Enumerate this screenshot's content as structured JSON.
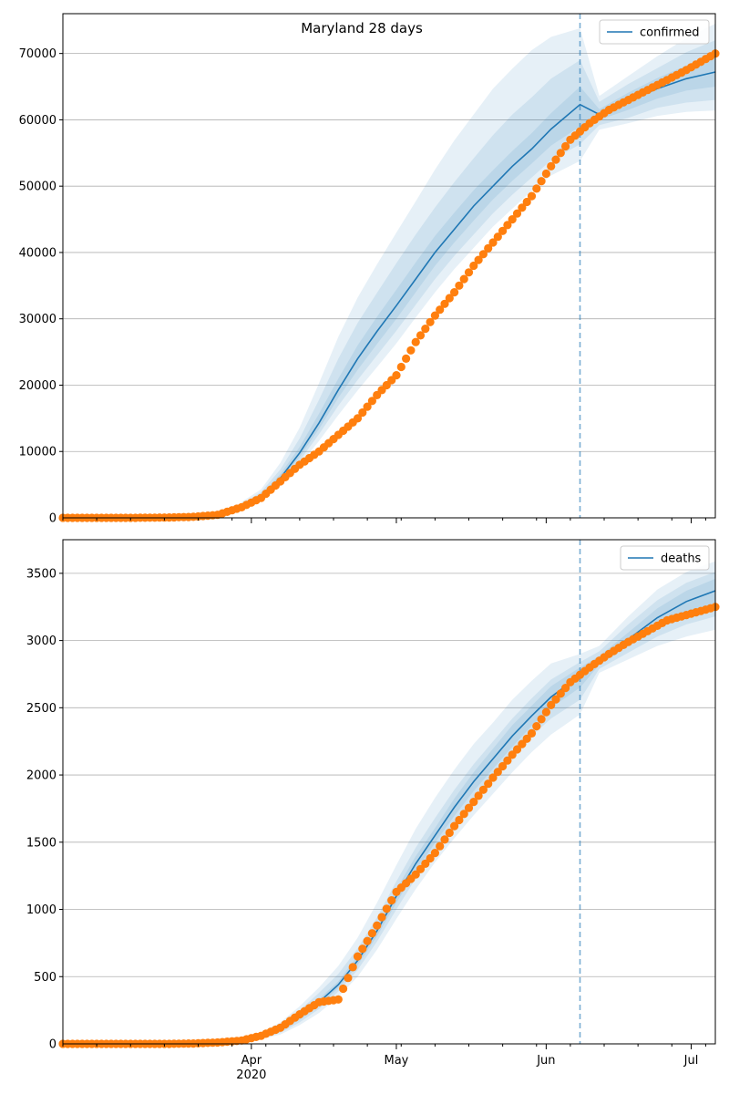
{
  "title": "Maryland 28 days",
  "colors": {
    "model": "#1f77b4",
    "observed": "#ff7f0e",
    "band": "#1f77b4",
    "grid": "#b0b0b0"
  },
  "x_axis": {
    "domain": [
      "2020-02-22",
      "2020-07-06"
    ],
    "ticks": [
      {
        "date": "2020-04-01",
        "label": "Apr",
        "sublabel": "2020"
      },
      {
        "date": "2020-05-01",
        "label": "May",
        "sublabel": ""
      },
      {
        "date": "2020-06-01",
        "label": "Jun",
        "sublabel": ""
      },
      {
        "date": "2020-07-01",
        "label": "Jul",
        "sublabel": ""
      }
    ],
    "forecast_start": "2020-06-08"
  },
  "chart_data": [
    {
      "type": "line",
      "name": "confirmed",
      "legend": "confirmed",
      "legend_position": "top-right",
      "grid": true,
      "ylim": [
        0,
        76000
      ],
      "yticks": [
        0,
        10000,
        20000,
        30000,
        40000,
        50000,
        60000,
        70000
      ],
      "model_line": {
        "x": [
          "2020-03-30",
          "2020-04-03",
          "2020-04-07",
          "2020-04-11",
          "2020-04-15",
          "2020-04-19",
          "2020-04-23",
          "2020-04-27",
          "2020-05-01",
          "2020-05-05",
          "2020-05-09",
          "2020-05-13",
          "2020-05-17",
          "2020-05-21",
          "2020-05-25",
          "2020-05-29",
          "2020-06-02",
          "2020-06-08",
          "2020-06-12",
          "2020-06-18",
          "2020-06-24",
          "2020-06-30",
          "2020-07-06"
        ],
        "y": [
          1600,
          3200,
          6000,
          9800,
          14300,
          19300,
          24000,
          28100,
          32000,
          36000,
          40000,
          43500,
          47000,
          50000,
          53000,
          55600,
          58600,
          62300,
          60800,
          62800,
          64700,
          66200,
          67200
        ],
        "bands": [
          {
            "lo": [
              1300,
              2600,
              4800,
              8000,
              11600,
              15500,
              19200,
              22700,
              26300,
              30200,
              34000,
              37500,
              40700,
              43900,
              46600,
              49300,
              51600,
              53800,
              58500,
              59500,
              60600,
              61200,
              61400
            ],
            "hi": [
              2400,
              4300,
              8300,
              13600,
              20300,
              27300,
              33200,
              38200,
              43000,
              47700,
              52500,
              56900,
              60800,
              64700,
              67700,
              70500,
              72500,
              73800,
              63600,
              66600,
              69600,
              72300,
              74500
            ]
          },
          {
            "lo": [
              1400,
              2800,
              5200,
              8600,
              12600,
              16900,
              20800,
              24500,
              28200,
              32100,
              36000,
              39500,
              42700,
              45900,
              48700,
              51300,
              53900,
              56300,
              59200,
              60300,
              61800,
              62600,
              63000
            ],
            "hi": [
              2100,
              3900,
              7300,
              12000,
              17800,
              24000,
              29400,
              33900,
              38400,
              42700,
              46800,
              50600,
              54200,
              57700,
              60800,
              63400,
              66200,
              69000,
              62700,
              65400,
              67800,
              70200,
              72000
            ]
          },
          {
            "lo": [
              1500,
              3000,
              5600,
              9200,
              13400,
              18100,
              22300,
              26200,
              30000,
              34000,
              38000,
              41500,
              44800,
              48000,
              50800,
              53400,
              56100,
              59000,
              60000,
              61500,
              63200,
              64400,
              65000
            ],
            "hi": [
              1800,
              3500,
              6600,
              10700,
              15700,
              21000,
              26000,
              30300,
              34400,
              38500,
              42500,
              46000,
              49400,
              52400,
              55300,
              58000,
              61000,
              65000,
              61600,
              64100,
              66300,
              68200,
              69600
            ]
          }
        ]
      },
      "observed": {
        "x": [
          "2020-02-22",
          "2020-03-01",
          "2020-03-08",
          "2020-03-15",
          "2020-03-20",
          "2020-03-25",
          "2020-03-30",
          "2020-04-03",
          "2020-04-07",
          "2020-04-11",
          "2020-04-15",
          "2020-04-19",
          "2020-04-23",
          "2020-04-27",
          "2020-05-01",
          "2020-05-05",
          "2020-05-09",
          "2020-05-13",
          "2020-05-17",
          "2020-05-21",
          "2020-05-25",
          "2020-05-29",
          "2020-06-02",
          "2020-06-06",
          "2020-06-10",
          "2020-06-14",
          "2020-06-18",
          "2020-06-22",
          "2020-06-26",
          "2020-06-30",
          "2020-07-06"
        ],
        "y": [
          0,
          0,
          0,
          50,
          150,
          450,
          1600,
          3000,
          5500,
          8000,
          10000,
          12500,
          15000,
          18500,
          21500,
          26500,
          30500,
          34000,
          38000,
          41500,
          45000,
          48500,
          53000,
          57000,
          59500,
          61500,
          63000,
          64500,
          66000,
          67500,
          70000
        ]
      }
    },
    {
      "type": "line",
      "name": "deaths",
      "legend": "deaths",
      "legend_position": "top-right",
      "grid": true,
      "ylim": [
        0,
        3750
      ],
      "yticks": [
        0,
        500,
        1000,
        1500,
        2000,
        2500,
        3000,
        3500
      ],
      "model_line": {
        "x": [
          "2020-03-30",
          "2020-04-03",
          "2020-04-07",
          "2020-04-11",
          "2020-04-15",
          "2020-04-19",
          "2020-04-23",
          "2020-04-27",
          "2020-05-01",
          "2020-05-05",
          "2020-05-09",
          "2020-05-13",
          "2020-05-17",
          "2020-05-21",
          "2020-05-25",
          "2020-05-29",
          "2020-06-02",
          "2020-06-08",
          "2020-06-12",
          "2020-06-18",
          "2020-06-24",
          "2020-06-30",
          "2020-07-06"
        ],
        "y": [
          25,
          55,
          110,
          200,
          310,
          440,
          620,
          840,
          1100,
          1340,
          1550,
          1760,
          1950,
          2120,
          2290,
          2440,
          2580,
          2740,
          2850,
          3010,
          3170,
          3290,
          3370
        ],
        "bands": [
          {
            "lo": [
              15,
              35,
              70,
              140,
              230,
              350,
              500,
              700,
              930,
              1150,
              1350,
              1530,
              1700,
              1860,
              2020,
              2170,
              2300,
              2450,
              2760,
              2860,
              2960,
              3030,
              3080
            ],
            "hi": [
              40,
              85,
              160,
              280,
              420,
              580,
              790,
              1050,
              1330,
              1600,
              1830,
              2040,
              2230,
              2390,
              2560,
              2700,
              2830,
              2900,
              2960,
              3180,
              3380,
              3510,
              3590
            ]
          },
          {
            "lo": [
              18,
              40,
              82,
              160,
              260,
              390,
              550,
              760,
              1000,
              1230,
              1440,
              1630,
              1810,
              1970,
              2130,
              2290,
              2420,
              2560,
              2790,
              2910,
              3030,
              3120,
              3180
            ],
            "hi": [
              34,
              72,
              140,
              250,
              380,
              520,
              710,
              940,
              1210,
              1460,
              1680,
              1890,
              2080,
              2250,
              2420,
              2570,
              2710,
              2840,
              2920,
              3120,
              3300,
              3430,
              3510
            ]
          },
          {
            "lo": [
              21,
              47,
              95,
              180,
              285,
              415,
              585,
              800,
              1050,
              1285,
              1495,
              1695,
              1880,
              2045,
              2210,
              2365,
              2500,
              2650,
              2820,
              2960,
              3100,
              3200,
              3270
            ],
            "hi": [
              29,
              63,
              125,
              220,
              335,
              465,
              655,
              880,
              1150,
              1395,
              1605,
              1825,
              2020,
              2195,
              2370,
              2515,
              2660,
              2800,
              2885,
              3060,
              3240,
              3370,
              3460
            ]
          }
        ]
      },
      "observed": {
        "x": [
          "2020-02-22",
          "2020-03-01",
          "2020-03-08",
          "2020-03-15",
          "2020-03-20",
          "2020-03-25",
          "2020-03-30",
          "2020-04-03",
          "2020-04-07",
          "2020-04-11",
          "2020-04-15",
          "2020-04-19",
          "2020-04-23",
          "2020-04-27",
          "2020-05-01",
          "2020-05-05",
          "2020-05-09",
          "2020-05-13",
          "2020-05-17",
          "2020-05-21",
          "2020-05-25",
          "2020-05-29",
          "2020-06-02",
          "2020-06-06",
          "2020-06-10",
          "2020-06-14",
          "2020-06-18",
          "2020-06-22",
          "2020-06-26",
          "2020-06-30",
          "2020-07-06"
        ],
        "y": [
          0,
          0,
          0,
          0,
          3,
          10,
          25,
          60,
          120,
          220,
          310,
          330,
          650,
          880,
          1130,
          1260,
          1420,
          1620,
          1800,
          1980,
          2150,
          2310,
          2520,
          2690,
          2800,
          2900,
          2990,
          3070,
          3150,
          3190,
          3250
        ]
      }
    }
  ]
}
